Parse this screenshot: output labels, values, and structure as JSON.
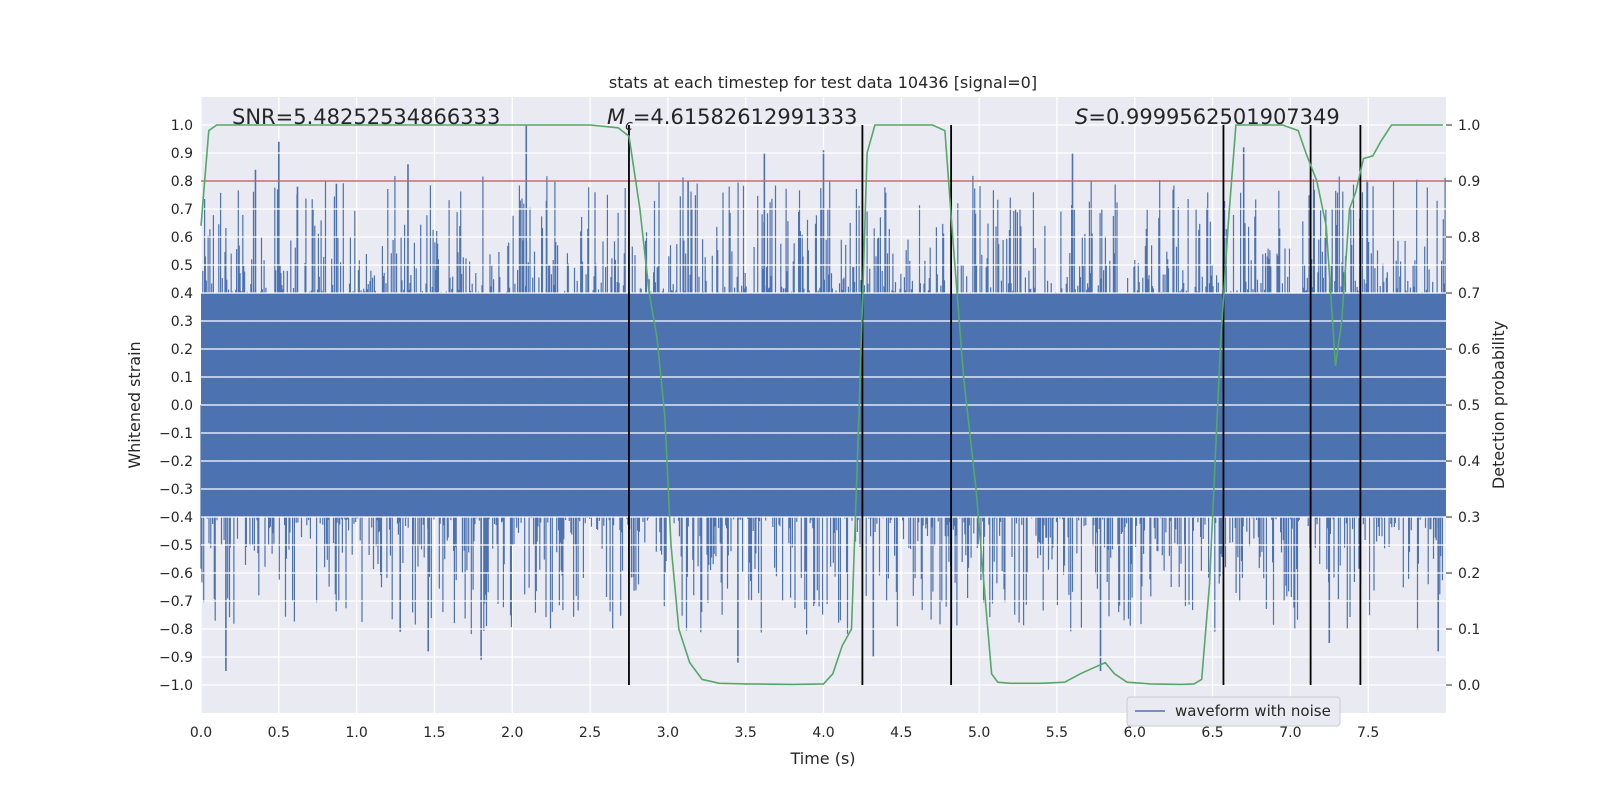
{
  "chart_data": {
    "type": "line",
    "title": "stats at each timestep for test data 10436 [signal=0]",
    "xlabel": "Time (s)",
    "ylabel_left": "Whitened strain",
    "ylabel_right": "Detection probability",
    "xlim": [
      0,
      8
    ],
    "ylim_left": [
      -1.1,
      1.1
    ],
    "ylim_right": [
      -0.05,
      1.05
    ],
    "xticks": [
      "0.0",
      "0.5",
      "1.0",
      "1.5",
      "2.0",
      "2.5",
      "3.0",
      "3.5",
      "4.0",
      "4.5",
      "5.0",
      "5.5",
      "6.0",
      "6.5",
      "7.0",
      "7.5"
    ],
    "yticks_left": [
      "1.0",
      "0.9",
      "0.8",
      "0.7",
      "0.6",
      "0.5",
      "0.4",
      "0.3",
      "0.2",
      "0.1",
      "0.0",
      "-0.1",
      "-0.2",
      "-0.3",
      "-0.4",
      "-0.5",
      "-0.6",
      "-0.7",
      "-0.8",
      "-0.9",
      "-1.0"
    ],
    "yticks_right": [
      "1.0",
      "0.9",
      "0.8",
      "0.7",
      "0.6",
      "0.5",
      "0.4",
      "0.3",
      "0.2",
      "0.1",
      "0.0"
    ],
    "annotations": {
      "snr": "SNR=5.48252534866333",
      "mc_symbol": "M",
      "mc_sub": "c",
      "mc_value": "=4.61582612991333",
      "s_symbol": "S",
      "s_value": "=0.9999562501907349"
    },
    "threshold_line": {
      "axis": "right",
      "value": 0.9,
      "color": "#c44e52"
    },
    "vertical_lines": {
      "x": [
        2.75,
        4.25,
        4.82,
        6.57,
        7.13,
        7.45
      ],
      "y_range": [
        -1.0,
        1.0
      ],
      "color": "#000000"
    },
    "series": [
      {
        "name": "waveform with noise",
        "axis": "left",
        "color": "#4c72b0",
        "description": "whitened strain noise, dense band ~ +-0.4 with spikes up to 0.95 / down to -0.95",
        "band": [
          -0.4,
          0.4
        ],
        "spikes": [
          [
            0.16,
            -0.95
          ],
          [
            0.35,
            0.84
          ],
          [
            0.5,
            0.94
          ],
          [
            0.62,
            0.78
          ],
          [
            0.87,
            0.79
          ],
          [
            1.28,
            -0.81
          ],
          [
            1.33,
            0.86
          ],
          [
            1.46,
            -0.88
          ],
          [
            1.8,
            -0.91
          ],
          [
            2.09,
            1.0
          ],
          [
            2.22,
            0.73
          ],
          [
            3.13,
            0.8
          ],
          [
            3.45,
            -0.92
          ],
          [
            3.62,
            0.9
          ],
          [
            4.0,
            0.91
          ],
          [
            4.32,
            -0.9
          ],
          [
            5.6,
            0.9
          ],
          [
            5.78,
            -0.95
          ],
          [
            6.7,
            0.92
          ],
          [
            7.25,
            -0.85
          ],
          [
            7.95,
            -0.88
          ]
        ]
      },
      {
        "name": "detection probability",
        "axis": "right",
        "color": "#55a868",
        "x": [
          0.0,
          0.05,
          0.1,
          0.2,
          0.5,
          1.0,
          1.5,
          2.0,
          2.5,
          2.68,
          2.75,
          2.82,
          2.88,
          2.93,
          2.98,
          3.02,
          3.07,
          3.14,
          3.22,
          3.33,
          3.5,
          3.8,
          4.0,
          4.06,
          4.12,
          4.18,
          4.23,
          4.28,
          4.33,
          4.5,
          4.7,
          4.78,
          4.83,
          4.9,
          4.98,
          5.04,
          5.08,
          5.12,
          5.2,
          5.4,
          5.55,
          5.65,
          5.73,
          5.81,
          5.87,
          5.95,
          6.1,
          6.3,
          6.38,
          6.43,
          6.48,
          6.55,
          6.6,
          6.65,
          6.7,
          6.8,
          6.95,
          7.05,
          7.1,
          7.17,
          7.23,
          7.29,
          7.33,
          7.38,
          7.42,
          7.47,
          7.53,
          7.58,
          7.65,
          7.72,
          7.8,
          7.98
        ],
        "values": [
          0.82,
          0.99,
          1.0,
          1.0,
          1.0,
          1.0,
          1.0,
          1.0,
          1.0,
          0.995,
          0.98,
          0.85,
          0.7,
          0.62,
          0.48,
          0.25,
          0.1,
          0.04,
          0.01,
          0.003,
          0.002,
          0.001,
          0.002,
          0.02,
          0.07,
          0.1,
          0.5,
          0.95,
          1.0,
          1.0,
          1.0,
          0.99,
          0.8,
          0.55,
          0.35,
          0.15,
          0.02,
          0.005,
          0.003,
          0.003,
          0.005,
          0.02,
          0.03,
          0.04,
          0.02,
          0.005,
          0.002,
          0.001,
          0.002,
          0.01,
          0.18,
          0.6,
          0.82,
          1.0,
          1.0,
          1.0,
          1.0,
          0.99,
          0.95,
          0.9,
          0.82,
          0.57,
          0.65,
          0.85,
          0.88,
          0.94,
          0.945,
          0.97,
          1.0,
          1.0,
          1.0,
          1.0
        ]
      }
    ],
    "legend": {
      "label": "waveform with noise",
      "position": "lower-right"
    }
  }
}
